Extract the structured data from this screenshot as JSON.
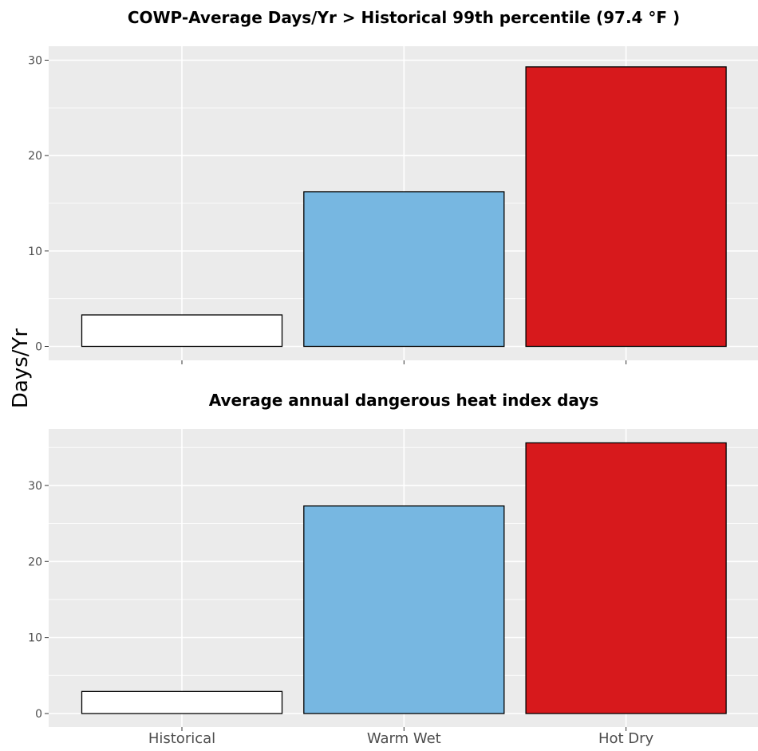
{
  "chart_data": {
    "ylabel": "Days/Yr",
    "panels": [
      {
        "type": "bar",
        "title": "COWP-Average Days/Yr > Historical 99th percentile (97.4 °F )",
        "categories": [
          "Historical",
          "Warm Wet",
          "Hot Dry"
        ],
        "values": [
          3.3,
          16.2,
          29.3
        ],
        "ylim": [
          0,
          30
        ],
        "yticks": [
          "0",
          "10",
          "20",
          "30"
        ],
        "show_x_tick_labels": false,
        "grid": true
      },
      {
        "type": "bar",
        "title": "Average annual dangerous heat index days",
        "categories": [
          "Historical",
          "Warm Wet",
          "Hot Dry"
        ],
        "values": [
          2.9,
          27.3,
          35.6
        ],
        "ylim": [
          0,
          35.6
        ],
        "yticks": [
          "0",
          "10",
          "20",
          "30"
        ],
        "show_x_tick_labels": true,
        "grid": true
      }
    ],
    "bar_colors": [
      "#ffffff",
      "#77b7e1",
      "#d7191c"
    ],
    "panel_background": "#ebebeb",
    "grid_color": "#ffffff",
    "bar_outline": "#000000"
  }
}
